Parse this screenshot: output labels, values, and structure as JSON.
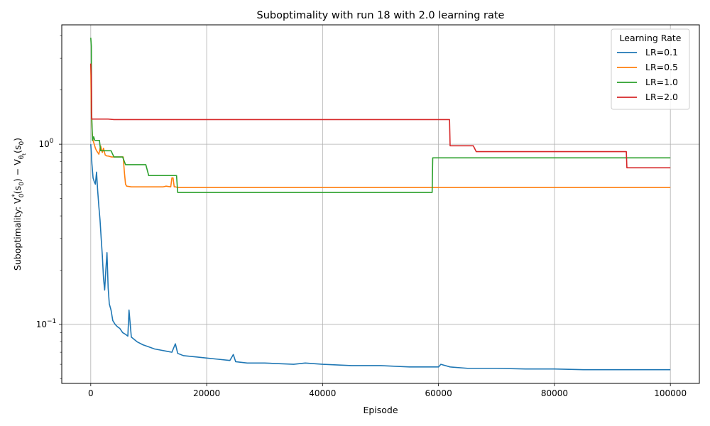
{
  "chart_data": {
    "type": "line",
    "title": "Suboptimality with run 18 with 2.0 learning rate",
    "xlabel": "Episode",
    "ylabel_parts": [
      "Suboptimality: V",
      "0",
      "*",
      "(s",
      "0",
      ") − V",
      "θ",
      "t",
      "(s",
      "0",
      ")"
    ],
    "y_scale": "log",
    "xlim": [
      -5000,
      105000
    ],
    "ylim": [
      0.047,
      4.6
    ],
    "x_ticks": [
      0,
      20000,
      40000,
      60000,
      80000,
      100000
    ],
    "x_tick_labels": [
      "0",
      "20000",
      "40000",
      "60000",
      "80000",
      "100000"
    ],
    "y_ticks": [
      0.1,
      1
    ],
    "y_tick_labels": [
      [
        "10",
        "−1"
      ],
      [
        "10",
        "0"
      ]
    ],
    "grid": true,
    "legend": {
      "title": "Learning Rate",
      "position": "top-right"
    },
    "series": [
      {
        "name": "LR=0.1",
        "color": "#1f77b4",
        "x": [
          0,
          100,
          200,
          400,
          600,
          800,
          1000,
          1200,
          1400,
          1600,
          1800,
          2000,
          2200,
          2400,
          2600,
          2800,
          3000,
          3200,
          3500,
          3800,
          4200,
          4600,
          5000,
          5500,
          6000,
          6400,
          6600,
          7000,
          8000,
          9000,
          10000,
          11000,
          12000,
          13000,
          14000,
          14600,
          15000,
          16000,
          18000,
          20000,
          22000,
          24000,
          24600,
          25000,
          27000,
          30000,
          35000,
          37000,
          40000,
          45000,
          50000,
          55000,
          58000,
          60000,
          60400,
          62000,
          65000,
          70000,
          75000,
          80000,
          85000,
          90000,
          95000,
          100000
        ],
        "y": [
          1.0,
          0.9,
          0.78,
          0.65,
          0.62,
          0.6,
          0.7,
          0.55,
          0.45,
          0.38,
          0.3,
          0.24,
          0.18,
          0.155,
          0.2,
          0.25,
          0.16,
          0.13,
          0.12,
          0.105,
          0.1,
          0.097,
          0.095,
          0.09,
          0.088,
          0.086,
          0.12,
          0.085,
          0.08,
          0.077,
          0.075,
          0.073,
          0.072,
          0.071,
          0.07,
          0.078,
          0.069,
          0.067,
          0.066,
          0.065,
          0.064,
          0.063,
          0.068,
          0.062,
          0.061,
          0.061,
          0.06,
          0.061,
          0.06,
          0.059,
          0.059,
          0.058,
          0.058,
          0.058,
          0.06,
          0.058,
          0.057,
          0.057,
          0.0565,
          0.0565,
          0.056,
          0.056,
          0.056,
          0.056
        ]
      },
      {
        "name": "LR=0.5",
        "color": "#ff7f0e",
        "x": [
          0,
          100,
          250,
          400,
          600,
          800,
          1000,
          1200,
          1400,
          1700,
          2000,
          2200,
          2500,
          2800,
          3000,
          3600,
          4000,
          4500,
          5000,
          5600,
          5800,
          6000,
          6200,
          7000,
          9000,
          11000,
          12500,
          13000,
          13800,
          14000,
          14200,
          14400,
          14600,
          15000,
          20000,
          30000,
          40000,
          50000,
          60000,
          70000,
          80000,
          90000,
          100000
        ],
        "y": [
          2.8,
          1.5,
          1.15,
          1.05,
          1.0,
          0.95,
          0.92,
          0.9,
          0.88,
          0.98,
          0.9,
          0.95,
          0.87,
          0.86,
          0.86,
          0.85,
          0.85,
          0.85,
          0.85,
          0.85,
          0.7,
          0.6,
          0.585,
          0.58,
          0.58,
          0.58,
          0.58,
          0.585,
          0.58,
          0.65,
          0.65,
          0.58,
          0.58,
          0.575,
          0.575,
          0.575,
          0.575,
          0.575,
          0.575,
          0.575,
          0.575,
          0.575,
          0.575
        ]
      },
      {
        "name": "LR=1.0",
        "color": "#2ca02c",
        "x": [
          0,
          100,
          150,
          300,
          500,
          700,
          1000,
          1500,
          1700,
          2000,
          3500,
          4000,
          5500,
          6000,
          7000,
          9500,
          10000,
          10400,
          10600,
          11000,
          13000,
          14000,
          14800,
          15000,
          20000,
          30000,
          40000,
          50000,
          58900,
          59000,
          60000,
          70000,
          80000,
          90000,
          100000
        ],
        "y": [
          3.9,
          3.5,
          1.5,
          1.05,
          1.1,
          1.05,
          1.05,
          1.05,
          0.92,
          0.92,
          0.92,
          0.85,
          0.85,
          0.77,
          0.77,
          0.77,
          0.67,
          0.67,
          0.67,
          0.67,
          0.67,
          0.67,
          0.67,
          0.54,
          0.54,
          0.54,
          0.54,
          0.54,
          0.54,
          0.84,
          0.84,
          0.84,
          0.84,
          0.84,
          0.84
        ]
      },
      {
        "name": "LR=2.0",
        "color": "#d62728",
        "x": [
          0,
          100,
          150,
          300,
          1000,
          3000,
          4000,
          5000,
          10000,
          20000,
          30000,
          40000,
          50000,
          61900,
          62000,
          66000,
          66500,
          70000,
          80000,
          92400,
          92500,
          100000
        ],
        "y": [
          2.8,
          2.4,
          1.38,
          1.38,
          1.38,
          1.38,
          1.37,
          1.37,
          1.37,
          1.37,
          1.37,
          1.37,
          1.37,
          1.37,
          0.98,
          0.98,
          0.91,
          0.91,
          0.91,
          0.91,
          0.74,
          0.74
        ]
      }
    ]
  }
}
